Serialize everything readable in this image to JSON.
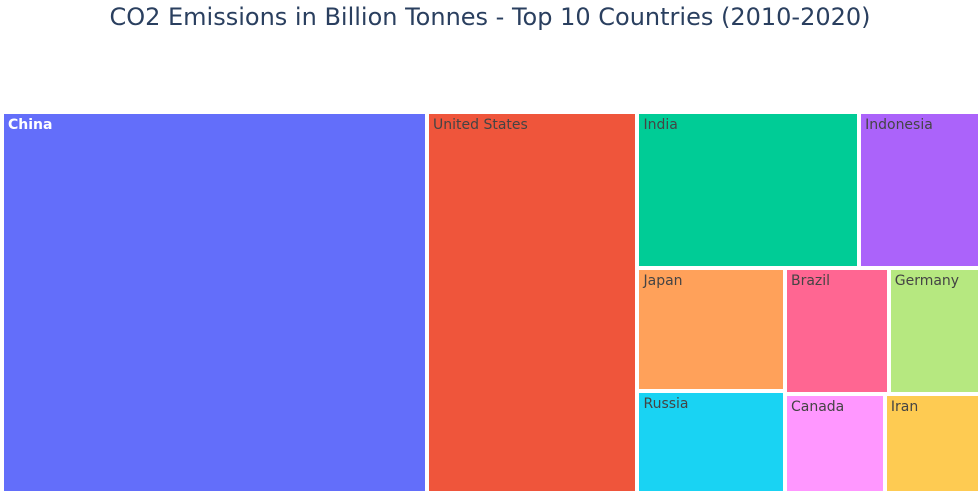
{
  "chart_data": {
    "type": "treemap",
    "title": "CO2 Emissions in Billion Tonnes - Top 10 Countries (2010-2020)",
    "items": [
      {
        "label": "China",
        "value": 103,
        "color": "#636efa",
        "text_color": "#ffffff"
      },
      {
        "label": "United States",
        "value": 51,
        "color": "#ef553b",
        "text_color": "#444444"
      },
      {
        "label": "India",
        "value": 22,
        "color": "#00cc96",
        "text_color": "#444444"
      },
      {
        "label": "Indonesia",
        "value": 12,
        "color": "#ab63fa",
        "text_color": "#444444"
      },
      {
        "label": "Japan",
        "value": 11.5,
        "color": "#ffa15a",
        "text_color": "#444444"
      },
      {
        "label": "Russia",
        "value": 9.6,
        "color": "#19d3f3",
        "text_color": "#444444"
      },
      {
        "label": "Brazil",
        "value": 8.3,
        "color": "#ff6692",
        "text_color": "#444444"
      },
      {
        "label": "Germany",
        "value": 7.3,
        "color": "#b6e880",
        "text_color": "#444444"
      },
      {
        "label": "Canada",
        "value": 6.3,
        "color": "#ff97ff",
        "text_color": "#444444"
      },
      {
        "label": "Iran",
        "value": 6.0,
        "color": "#fecb52",
        "text_color": "#444444"
      }
    ]
  }
}
